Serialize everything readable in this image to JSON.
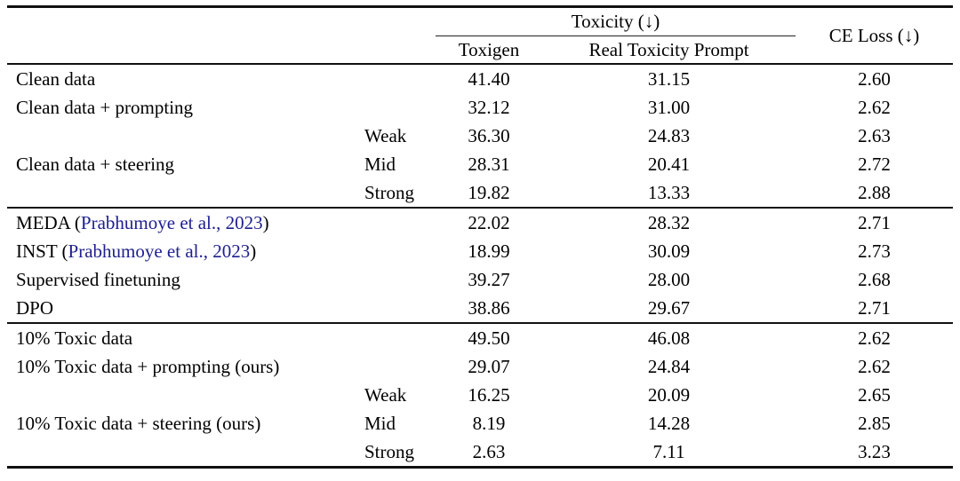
{
  "colors": {
    "citation_blue": "#1e1e8f",
    "rule_black": "#111111",
    "background": "#ffffff"
  },
  "table": {
    "header": {
      "toxicity_group": "Toxicity (↓)",
      "toxigen": "Toxigen",
      "real_toxicity_prompt": "Real Toxicity Prompt",
      "ce_loss": "CE Loss (↓)"
    },
    "rows": [
      {
        "label_prefix": "Clean data",
        "citation": "",
        "label_suffix": "",
        "strength": "",
        "toxigen": "41.40",
        "real_toxicity_prompt": "31.15",
        "ce_loss": "2.60"
      },
      {
        "label_prefix": "Clean data + prompting",
        "citation": "",
        "label_suffix": "",
        "strength": "",
        "toxigen": "32.12",
        "real_toxicity_prompt": "31.00",
        "ce_loss": "2.62"
      },
      {
        "label_prefix": "",
        "citation": "",
        "label_suffix": "",
        "strength": "Weak",
        "toxigen": "36.30",
        "real_toxicity_prompt": "24.83",
        "ce_loss": "2.63"
      },
      {
        "label_prefix": "Clean data + steering",
        "citation": "",
        "label_suffix": "",
        "strength": "Mid",
        "toxigen": "28.31",
        "real_toxicity_prompt": "20.41",
        "ce_loss": "2.72"
      },
      {
        "label_prefix": "",
        "citation": "",
        "label_suffix": "",
        "strength": "Strong",
        "toxigen": "19.82",
        "real_toxicity_prompt": "13.33",
        "ce_loss": "2.88"
      },
      {
        "label_prefix": "MEDA (",
        "citation": "Prabhumoye et al., 2023",
        "label_suffix": ")",
        "strength": "",
        "toxigen": "22.02",
        "real_toxicity_prompt": "28.32",
        "ce_loss": "2.71"
      },
      {
        "label_prefix": "INST (",
        "citation": "Prabhumoye et al., 2023",
        "label_suffix": ")",
        "strength": "",
        "toxigen": "18.99",
        "real_toxicity_prompt": "30.09",
        "ce_loss": "2.73"
      },
      {
        "label_prefix": "Supervised finetuning",
        "citation": "",
        "label_suffix": "",
        "strength": "",
        "toxigen": "39.27",
        "real_toxicity_prompt": "28.00",
        "ce_loss": "2.68"
      },
      {
        "label_prefix": "DPO",
        "citation": "",
        "label_suffix": "",
        "strength": "",
        "toxigen": "38.86",
        "real_toxicity_prompt": "29.67",
        "ce_loss": "2.71"
      },
      {
        "label_prefix": "10% Toxic data",
        "citation": "",
        "label_suffix": "",
        "strength": "",
        "toxigen": "49.50",
        "real_toxicity_prompt": "46.08",
        "ce_loss": "2.62"
      },
      {
        "label_prefix": "10% Toxic data + prompting (ours)",
        "citation": "",
        "label_suffix": "",
        "strength": "",
        "toxigen": "29.07",
        "real_toxicity_prompt": "24.84",
        "ce_loss": "2.62"
      },
      {
        "label_prefix": "",
        "citation": "",
        "label_suffix": "",
        "strength": "Weak",
        "toxigen": "16.25",
        "real_toxicity_prompt": "20.09",
        "ce_loss": "2.65"
      },
      {
        "label_prefix": "10% Toxic data + steering (ours)",
        "citation": "",
        "label_suffix": "",
        "strength": "Mid",
        "toxigen": "8.19",
        "real_toxicity_prompt": "14.28",
        "ce_loss": "2.85"
      },
      {
        "label_prefix": "",
        "citation": "",
        "label_suffix": "",
        "strength": "Strong",
        "toxigen": "2.63",
        "real_toxicity_prompt": "7.11",
        "ce_loss": "3.23"
      }
    ]
  }
}
